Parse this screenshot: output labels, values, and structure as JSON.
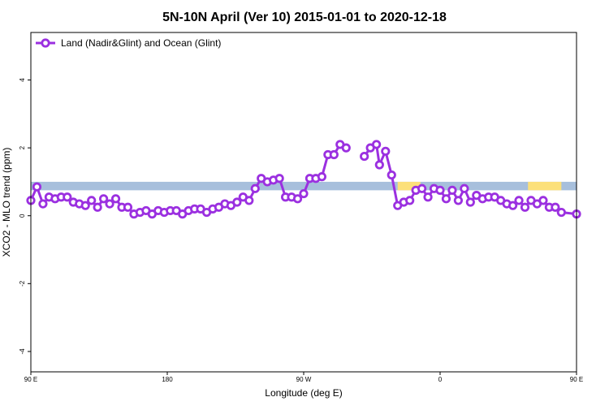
{
  "chart_data": {
    "type": "line",
    "title": "5N-10N April (Ver 10)   2015-01-01 to 2020-12-18",
    "xlabel": "Longitude (deg E)",
    "ylabel": "XCO2 - MLO trend (ppm)",
    "xlim": [
      90,
      450
    ],
    "ylim": [
      -4.6,
      5.4
    ],
    "grid": false,
    "legend_position": "top-left",
    "x_ticks": [
      {
        "value": 90,
        "label": "90 E"
      },
      {
        "value": 180,
        "label": "180"
      },
      {
        "value": 270,
        "label": "90 W"
      },
      {
        "value": 360,
        "label": "0"
      },
      {
        "value": 450,
        "label": "90 E"
      },
      {
        "value": 540,
        "label": "180"
      }
    ],
    "y_ticks": [
      {
        "value": -4,
        "label": "-4"
      },
      {
        "value": -2,
        "label": "-2"
      },
      {
        "value": 0,
        "label": "0"
      },
      {
        "value": 2,
        "label": "2"
      },
      {
        "value": 4,
        "label": "4"
      }
    ],
    "colors": {
      "series": "#9b30e0",
      "ocean": "#a7bfdc",
      "land": "#fce07a"
    },
    "land_ocean_band": {
      "y_range": [
        0.75,
        1.0
      ],
      "land_spans": [
        [
          332,
          347
        ],
        [
          418,
          440
        ]
      ]
    },
    "series": [
      {
        "name": "Land (Nadir&Glint) and Ocean (Glint)",
        "points": [
          [
            90,
            0.45
          ],
          [
            94,
            0.85
          ],
          [
            98,
            0.35
          ],
          [
            102,
            0.55
          ],
          [
            106,
            0.5
          ],
          [
            110,
            0.55
          ],
          [
            114,
            0.55
          ],
          [
            118,
            0.4
          ],
          [
            122,
            0.35
          ],
          [
            126,
            0.3
          ],
          [
            130,
            0.45
          ],
          [
            134,
            0.25
          ],
          [
            138,
            0.5
          ],
          [
            142,
            0.35
          ],
          [
            146,
            0.5
          ],
          [
            150,
            0.25
          ],
          [
            154,
            0.25
          ],
          [
            158,
            0.05
          ],
          [
            162,
            0.1
          ],
          [
            166,
            0.15
          ],
          [
            170,
            0.05
          ],
          [
            174,
            0.15
          ],
          [
            178,
            0.1
          ],
          [
            182,
            0.15
          ],
          [
            186,
            0.15
          ],
          [
            190,
            0.05
          ],
          [
            194,
            0.15
          ],
          [
            198,
            0.2
          ],
          [
            202,
            0.2
          ],
          [
            206,
            0.1
          ],
          [
            210,
            0.2
          ],
          [
            214,
            0.25
          ],
          [
            218,
            0.35
          ],
          [
            222,
            0.3
          ],
          [
            226,
            0.4
          ],
          [
            230,
            0.55
          ],
          [
            234,
            0.45
          ],
          [
            238,
            0.8
          ],
          [
            242,
            1.1
          ],
          [
            246,
            1.0
          ],
          [
            250,
            1.05
          ],
          [
            254,
            1.1
          ],
          [
            258,
            0.55
          ],
          [
            262,
            0.55
          ],
          [
            266,
            0.5
          ],
          [
            270,
            0.65
          ],
          [
            274,
            1.1
          ],
          [
            278,
            1.1
          ],
          [
            282,
            1.15
          ],
          [
            286,
            1.8
          ],
          [
            290,
            1.8
          ],
          [
            294,
            2.1
          ],
          [
            298,
            2.0
          ],
          [
            302,
            null
          ],
          [
            306,
            null
          ],
          [
            310,
            1.75
          ],
          [
            314,
            2.0
          ],
          [
            318,
            2.1
          ],
          [
            320,
            1.5
          ],
          [
            324,
            1.9
          ],
          [
            328,
            1.2
          ],
          [
            332,
            0.3
          ],
          [
            336,
            0.4
          ],
          [
            340,
            0.45
          ],
          [
            344,
            0.75
          ],
          [
            348,
            0.8
          ],
          [
            352,
            0.55
          ],
          [
            356,
            0.8
          ],
          [
            360,
            0.75
          ],
          [
            364,
            0.5
          ],
          [
            368,
            0.75
          ],
          [
            372,
            0.45
          ],
          [
            376,
            0.8
          ],
          [
            380,
            0.4
          ],
          [
            384,
            0.6
          ],
          [
            388,
            0.5
          ],
          [
            392,
            0.55
          ],
          [
            396,
            0.55
          ],
          [
            400,
            0.45
          ],
          [
            404,
            0.35
          ],
          [
            408,
            0.3
          ],
          [
            412,
            0.45
          ],
          [
            416,
            0.25
          ],
          [
            420,
            0.45
          ],
          [
            424,
            0.35
          ],
          [
            428,
            0.45
          ],
          [
            432,
            0.25
          ],
          [
            436,
            0.25
          ],
          [
            440,
            0.1
          ],
          [
            450,
            0.05
          ]
        ]
      }
    ]
  }
}
